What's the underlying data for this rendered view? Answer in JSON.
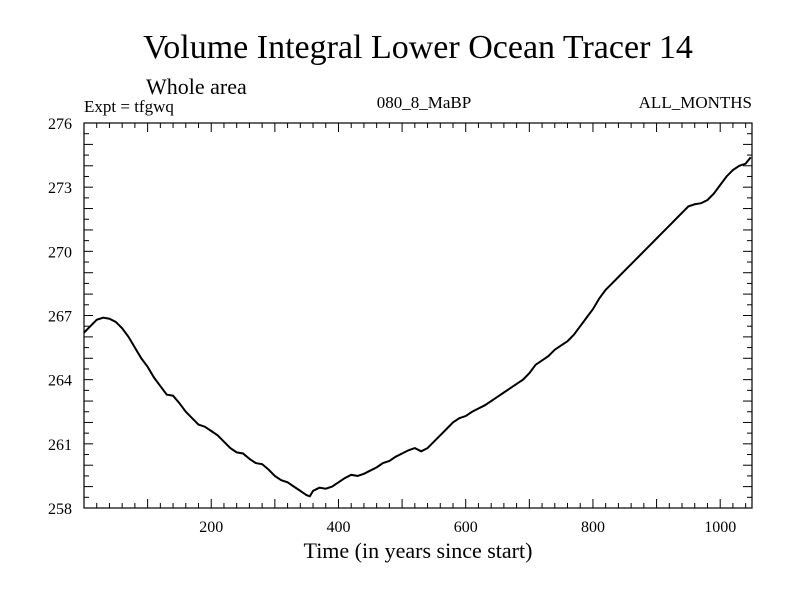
{
  "chart_data": {
    "type": "line",
    "title": "Volume Integral Lower Ocean Tracer 14",
    "subtitle": "Whole area",
    "expt_label": "Expt = tfgwq",
    "run_label": "080_8_MaBP",
    "months_label": "ALL_MONTHS",
    "xlabel": "Time (in years since start)",
    "ylabel": "",
    "xlim": [
      0,
      1050
    ],
    "ylim": [
      258,
      276
    ],
    "x_ticks": [
      200,
      400,
      600,
      800,
      1000
    ],
    "y_ticks": [
      258,
      261,
      264,
      267,
      270,
      273,
      276
    ],
    "grid": false,
    "series": [
      {
        "name": "Volume Integral Lower Ocean Tracer 14",
        "x": [
          0,
          10,
          20,
          30,
          40,
          50,
          60,
          70,
          80,
          90,
          100,
          110,
          120,
          130,
          140,
          150,
          160,
          170,
          180,
          190,
          200,
          210,
          220,
          230,
          240,
          250,
          260,
          270,
          280,
          290,
          300,
          310,
          320,
          330,
          340,
          350,
          355,
          360,
          370,
          380,
          390,
          400,
          410,
          420,
          430,
          440,
          450,
          460,
          470,
          480,
          490,
          500,
          510,
          520,
          530,
          540,
          550,
          560,
          570,
          580,
          590,
          600,
          610,
          620,
          630,
          640,
          650,
          660,
          670,
          680,
          690,
          700,
          710,
          720,
          730,
          740,
          750,
          760,
          770,
          780,
          790,
          800,
          810,
          820,
          830,
          840,
          850,
          860,
          870,
          880,
          890,
          900,
          910,
          920,
          930,
          940,
          950,
          960,
          970,
          980,
          990,
          1000,
          1010,
          1020,
          1030,
          1040,
          1048
        ],
        "values": [
          266.2,
          266.5,
          266.8,
          266.9,
          266.85,
          266.7,
          266.4,
          266.0,
          265.5,
          265.0,
          264.6,
          264.1,
          263.7,
          263.3,
          263.25,
          262.9,
          262.5,
          262.2,
          261.9,
          261.8,
          261.6,
          261.4,
          261.1,
          260.8,
          260.6,
          260.55,
          260.3,
          260.1,
          260.05,
          259.8,
          259.5,
          259.3,
          259.2,
          259.0,
          258.8,
          258.6,
          258.55,
          258.8,
          258.95,
          258.9,
          259.0,
          259.2,
          259.4,
          259.55,
          259.5,
          259.6,
          259.75,
          259.9,
          260.1,
          260.2,
          260.4,
          260.55,
          260.7,
          260.8,
          260.65,
          260.8,
          261.1,
          261.4,
          261.7,
          262.0,
          262.2,
          262.3,
          262.5,
          262.65,
          262.8,
          263.0,
          263.2,
          263.4,
          263.6,
          263.8,
          264.0,
          264.3,
          264.7,
          264.9,
          265.1,
          265.4,
          265.6,
          265.8,
          266.1,
          266.5,
          266.9,
          267.3,
          267.8,
          268.2,
          268.5,
          268.8,
          269.1,
          269.4,
          269.7,
          270.0,
          270.3,
          270.6,
          270.9,
          271.2,
          271.5,
          271.8,
          272.1,
          272.2,
          272.25,
          272.4,
          272.7,
          273.1,
          273.5,
          273.8,
          274.0,
          274.1,
          274.4
        ]
      }
    ]
  }
}
